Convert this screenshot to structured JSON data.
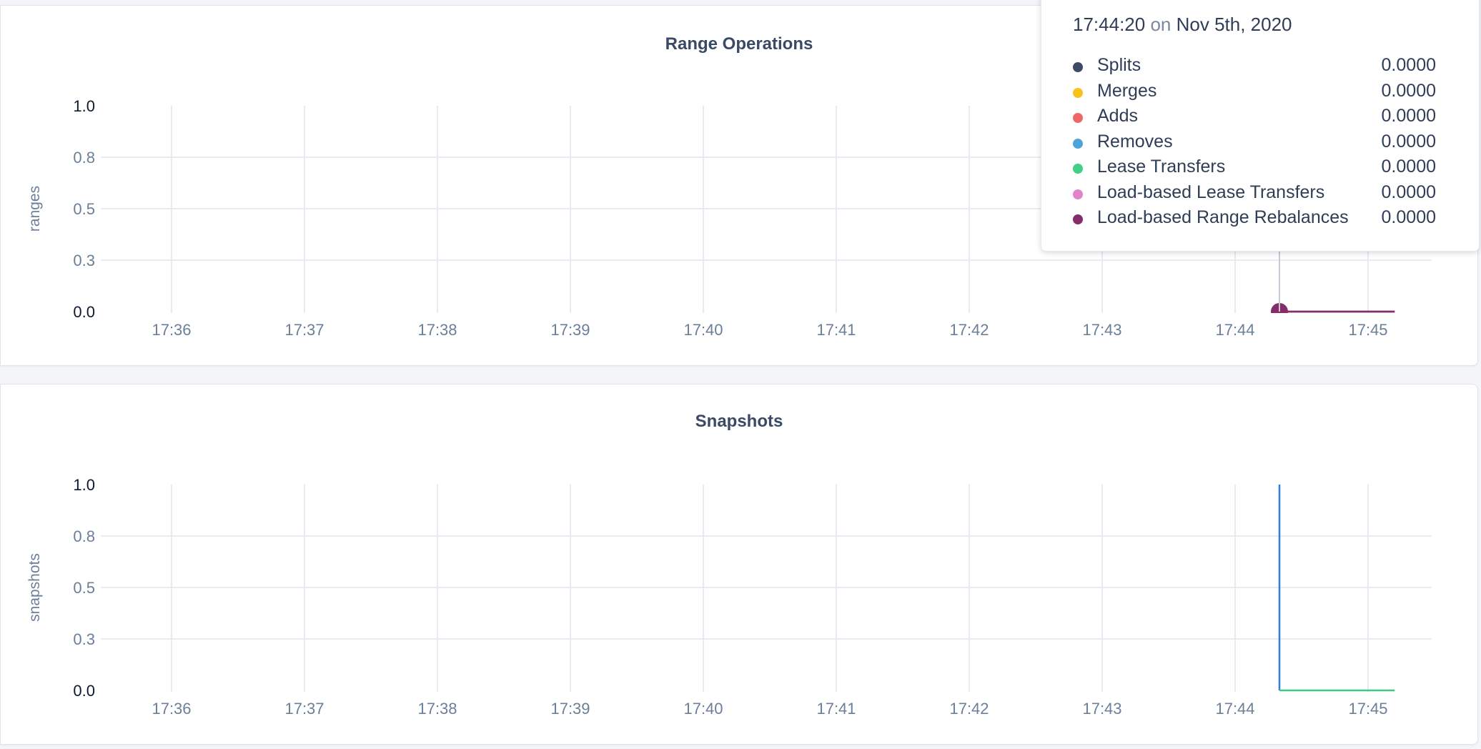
{
  "chart_data": [
    {
      "type": "line",
      "title": "Range Operations",
      "ylabel": "ranges",
      "ylim": [
        0,
        1
      ],
      "yticks": [
        0,
        0.25,
        0.5,
        0.75,
        1
      ],
      "ytick_labels": [
        "0.0",
        "0.3",
        "0.5",
        "0.8",
        "1.0"
      ],
      "xticks": [
        "17:36",
        "17:37",
        "17:38",
        "17:39",
        "17:40",
        "17:41",
        "17:42",
        "17:43",
        "17:44",
        "17:45"
      ],
      "grid": true,
      "series": [
        {
          "name": "Splits",
          "color": "#3d4b66",
          "x": [
            "17:44:20",
            "17:45:12"
          ],
          "values": [
            0,
            0
          ]
        },
        {
          "name": "Merges",
          "color": "#f9c21b",
          "x": [
            "17:44:20",
            "17:45:12"
          ],
          "values": [
            0,
            0
          ]
        },
        {
          "name": "Adds",
          "color": "#ef6764",
          "x": [
            "17:44:20",
            "17:45:12"
          ],
          "values": [
            0,
            0
          ]
        },
        {
          "name": "Removes",
          "color": "#4fa3d9",
          "x": [
            "17:44:20",
            "17:45:12"
          ],
          "values": [
            0,
            0
          ]
        },
        {
          "name": "Lease Transfers",
          "color": "#3fd08a",
          "x": [
            "17:44:20",
            "17:45:12"
          ],
          "values": [
            0,
            0
          ]
        },
        {
          "name": "Load-based Lease Transfers",
          "color": "#de86c8",
          "x": [
            "17:44:20",
            "17:45:12"
          ],
          "values": [
            0,
            0
          ]
        },
        {
          "name": "Load-based Range Rebalances",
          "color": "#842d68",
          "x": [
            "17:44:20",
            "17:45:12"
          ],
          "values": [
            0,
            0
          ]
        }
      ],
      "tooltip": {
        "time": "17:44:20",
        "on": "on",
        "date": "Nov 5th, 2020",
        "rows": [
          {
            "label": "Splits",
            "value": "0.0000"
          },
          {
            "label": "Merges",
            "value": "0.0000"
          },
          {
            "label": "Adds",
            "value": "0.0000"
          },
          {
            "label": "Removes",
            "value": "0.0000"
          },
          {
            "label": "Lease Transfers",
            "value": "0.0000"
          },
          {
            "label": "Load-based Lease Transfers",
            "value": "0.0000"
          },
          {
            "label": "Load-based Range Rebalances",
            "value": "0.0000"
          }
        ]
      }
    },
    {
      "type": "line",
      "title": "Snapshots",
      "ylabel": "snapshots",
      "ylim": [
        0,
        1
      ],
      "yticks": [
        0,
        0.25,
        0.5,
        0.75,
        1
      ],
      "ytick_labels": [
        "0.0",
        "0.3",
        "0.5",
        "0.8",
        "1.0"
      ],
      "xticks": [
        "17:36",
        "17:37",
        "17:38",
        "17:39",
        "17:40",
        "17:41",
        "17:42",
        "17:43",
        "17:44",
        "17:45"
      ],
      "grid": true,
      "series": [
        {
          "color": "#2f7de1",
          "x": [
            "17:44:20",
            "17:44:20"
          ],
          "values": [
            1,
            0
          ]
        },
        {
          "color": "#3fc886",
          "x": [
            "17:44:20",
            "17:45:12"
          ],
          "values": [
            0,
            0
          ]
        }
      ]
    }
  ]
}
